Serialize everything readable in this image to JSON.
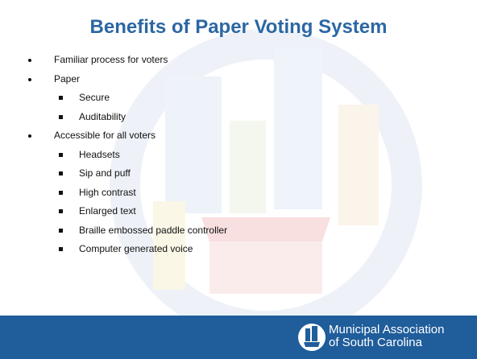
{
  "title": "Benefits of Paper Voting System",
  "items": [
    {
      "text": "Familiar process for voters"
    },
    {
      "text": "Paper",
      "children": [
        "Secure",
        "Auditability"
      ]
    },
    {
      "text": "Accessible for all voters",
      "children": [
        "Headsets",
        "Sip and puff",
        "High contrast",
        "Enlarged text",
        "Braille embossed paddle controller",
        "Computer generated voice"
      ]
    }
  ],
  "footer": {
    "org": [
      "Municipal Association",
      "of South Carolina"
    ]
  }
}
